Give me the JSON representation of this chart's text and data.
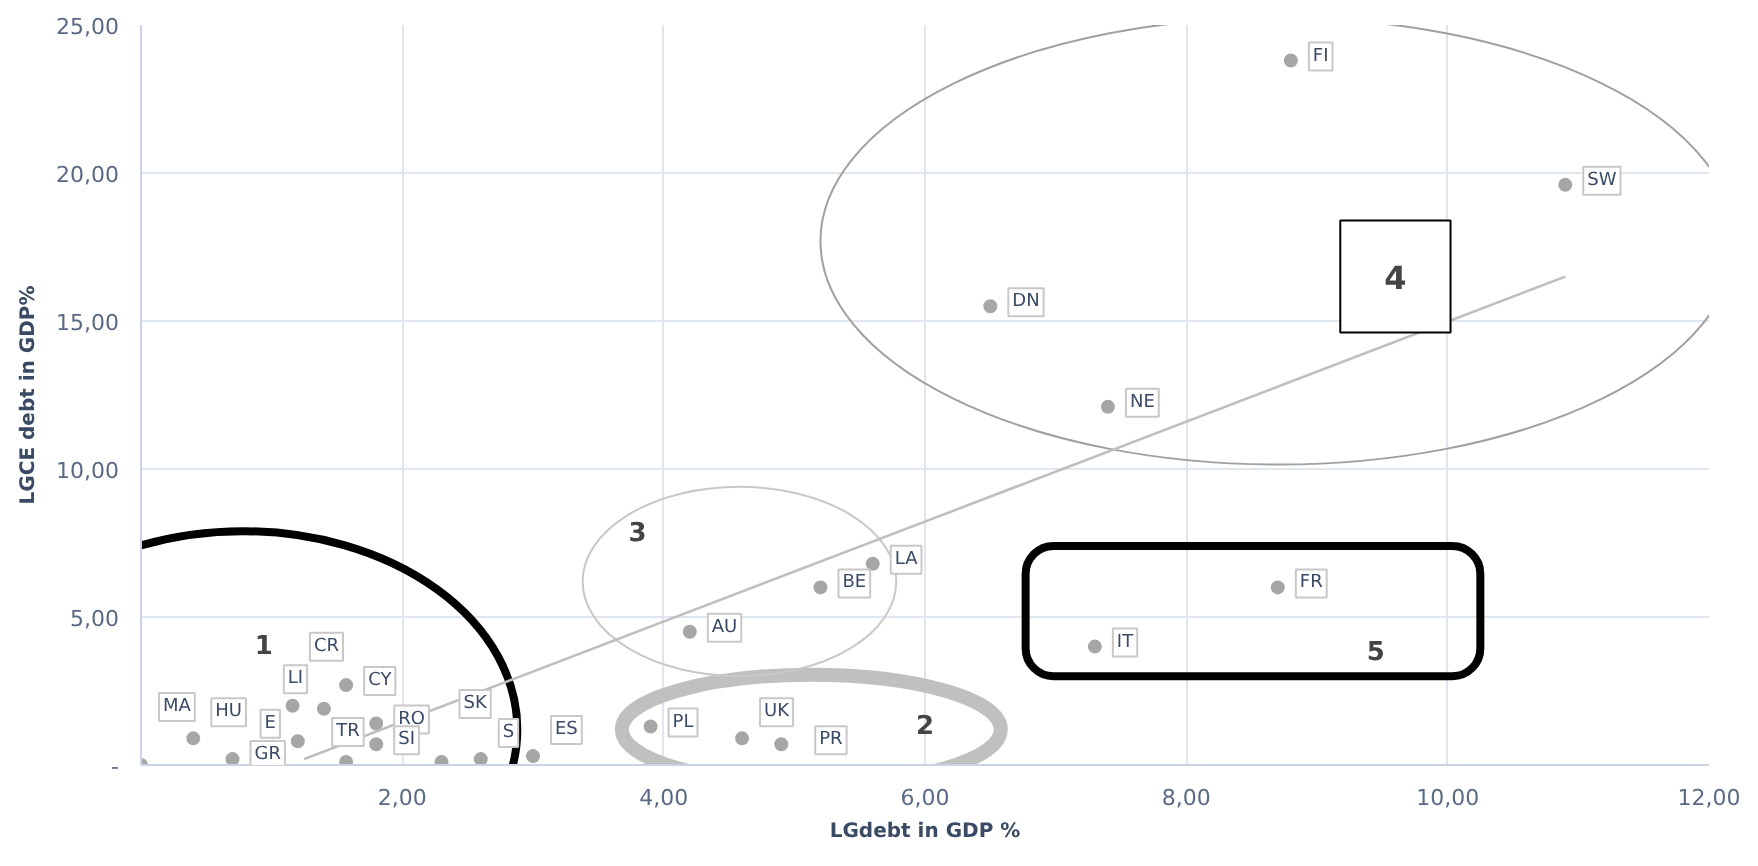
{
  "chart_data": {
    "type": "scatter",
    "xlabel": "LGdebt in GDP %",
    "ylabel": "LGCE debt in GDP%",
    "xlim": [
      0,
      12
    ],
    "ylim": [
      0,
      25
    ],
    "xticks": [
      {
        "value": 2,
        "label": "2,00"
      },
      {
        "value": 4,
        "label": "4,00"
      },
      {
        "value": 6,
        "label": "6,00"
      },
      {
        "value": 8,
        "label": "8,00"
      },
      {
        "value": 10,
        "label": "10,00"
      },
      {
        "value": 12,
        "label": "12,00"
      }
    ],
    "yticks": [
      {
        "value": 0,
        "label": "-"
      },
      {
        "value": 5,
        "label": "5,00"
      },
      {
        "value": 10,
        "label": "10,00"
      },
      {
        "value": 15,
        "label": "15,00"
      },
      {
        "value": 20,
        "label": "20,00"
      },
      {
        "value": 25,
        "label": "25,00"
      }
    ],
    "grid": true,
    "marker": "circle",
    "series": [
      {
        "color": "#a6a6a6",
        "x": [
          0,
          0.4,
          0.7,
          1.2,
          1.16,
          1.57,
          1.4,
          1.8,
          1.8,
          1.57,
          2.3,
          2.6,
          3.0,
          3.9,
          4.6,
          4.9,
          4.2,
          5.2,
          5.6,
          7.3,
          8.7,
          7.4,
          6.5,
          10.9,
          8.8
        ],
        "values": [
          0,
          0.9,
          0.2,
          0.8,
          2.0,
          2.7,
          1.9,
          1.4,
          0.7,
          0.1,
          0.1,
          0.2,
          0.3,
          1.3,
          0.9,
          0.7,
          4.5,
          6.0,
          6.8,
          4.0,
          6.0,
          12.1,
          15.5,
          19.6,
          23.8
        ]
      },
      {
        "type": "line",
        "marker": "none",
        "color": "#bfbfbf",
        "x": [
          1.25,
          10.9
        ],
        "values": [
          0.2,
          16.5
        ]
      }
    ],
    "annotations": [
      {
        "text": "MA",
        "x": 0,
        "y": 0
      },
      {
        "text": "HU",
        "x": 0.4,
        "y": 0.9
      },
      {
        "text": "GR",
        "x": 0.7,
        "y": 0.2
      },
      {
        "text": "LI",
        "x": 1.2,
        "y": 0.8
      },
      {
        "text": "E",
        "x": 1.16,
        "y": 2.0
      },
      {
        "text": "CY",
        "x": 1.57,
        "y": 2.7
      },
      {
        "text": "CR",
        "x": 1.4,
        "y": 1.9
      },
      {
        "text": "RO",
        "x": 1.8,
        "y": 1.4
      },
      {
        "text": "SI",
        "x": 1.8,
        "y": 0.7
      },
      {
        "text": "TR",
        "x": 1.57,
        "y": 0.1
      },
      {
        "text": "S",
        "x": 2.6,
        "y": 0.2
      },
      {
        "text": "SK",
        "x": 2.3,
        "y": 0.1
      },
      {
        "text": "ES",
        "x": 3.0,
        "y": 0.3
      },
      {
        "text": "PL",
        "x": 3.9,
        "y": 1.3
      },
      {
        "text": "UK",
        "x": 4.6,
        "y": 0.9
      },
      {
        "text": "PR",
        "x": 4.9,
        "y": 0.7
      },
      {
        "text": "AU",
        "x": 4.2,
        "y": 4.5
      },
      {
        "text": "BE",
        "x": 5.2,
        "y": 6.0
      },
      {
        "text": "LA",
        "x": 5.6,
        "y": 6.8
      },
      {
        "text": "IT",
        "x": 7.3,
        "y": 4.0
      },
      {
        "text": "FR",
        "x": 8.7,
        "y": 6.0
      },
      {
        "text": "NE",
        "x": 7.4,
        "y": 12.1
      },
      {
        "text": "DN",
        "x": 6.5,
        "y": 15.5
      },
      {
        "text": "SW",
        "x": 10.9,
        "y": 19.6
      },
      {
        "text": "FI",
        "x": 8.8,
        "y": 23.8
      },
      "1",
      "2",
      "3",
      "4",
      "5"
    ]
  }
}
